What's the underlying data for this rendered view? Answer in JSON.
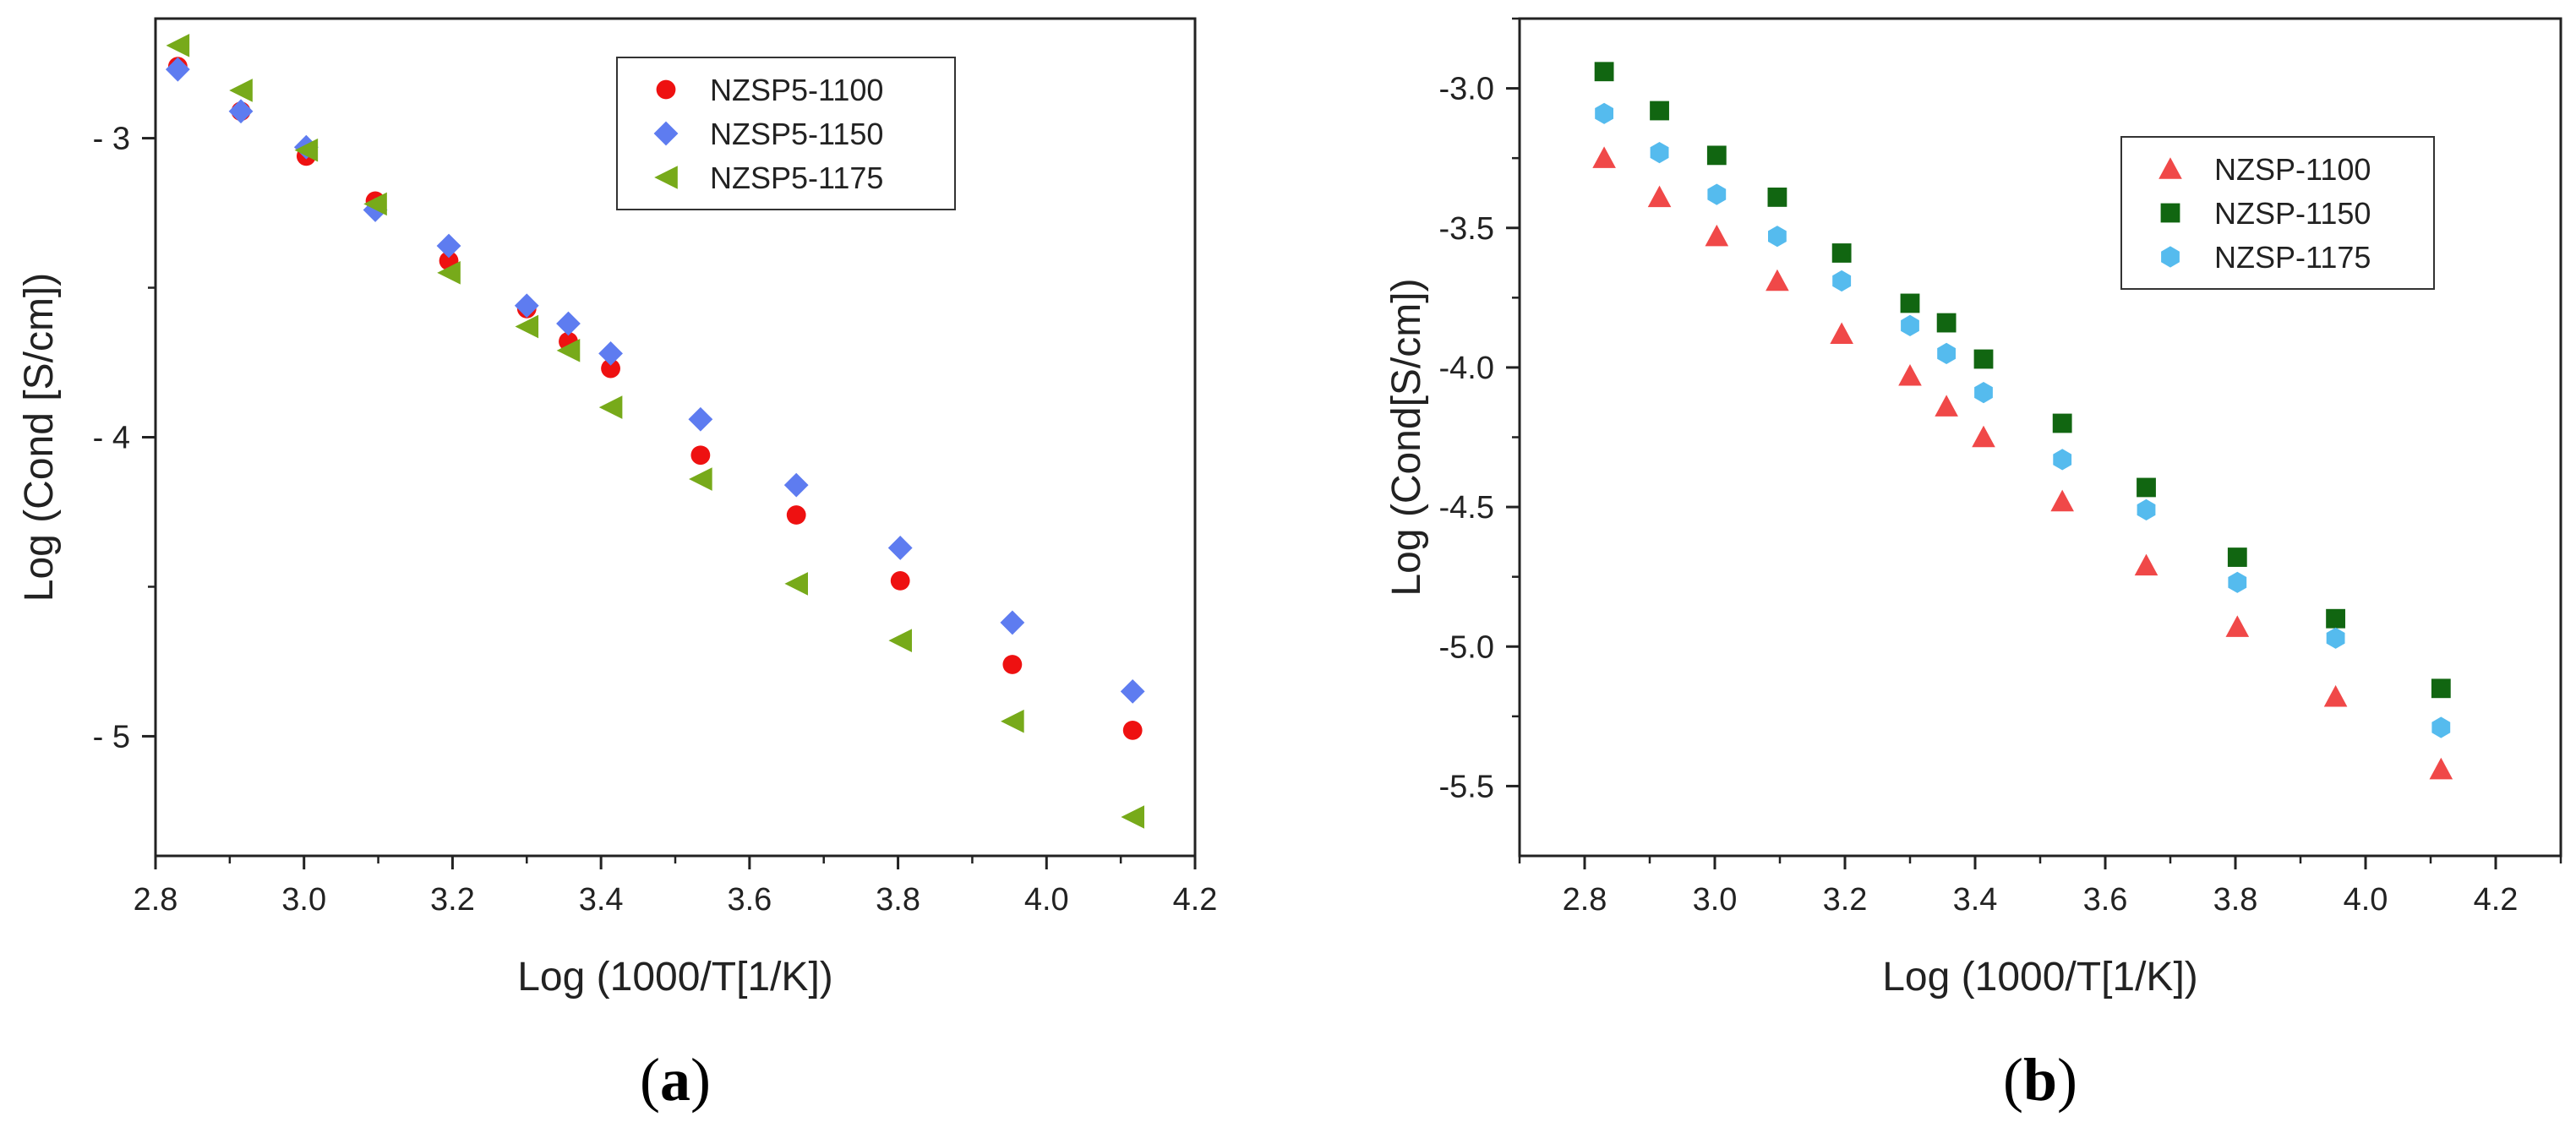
{
  "chart_data": [
    {
      "type": "scatter",
      "panel_label": "a",
      "xlabel": "Log (1000/T[1/K])",
      "ylabel": "Log (Cond [S/cm])",
      "xlim": [
        2.8,
        4.2
      ],
      "ylim": [
        -5.4,
        -2.6
      ],
      "xticks": [
        "2.8",
        "3.0",
        "3.2",
        "3.4",
        "3.6",
        "3.8",
        "4.0",
        "4.2"
      ],
      "yticks": [
        "- 3",
        "- 4",
        "- 5"
      ],
      "ytick_values": [
        -3,
        -4,
        -5
      ],
      "legend_position": "top-right",
      "grid": false,
      "x": [
        2.83,
        2.915,
        3.003,
        3.096,
        3.195,
        3.3,
        3.356,
        3.413,
        3.534,
        3.663,
        3.803,
        3.954,
        4.116
      ],
      "series": [
        {
          "name": "NZSP5-1100",
          "marker": "circle",
          "color": "#ee1111",
          "values": [
            -2.76,
            -2.91,
            -3.06,
            -3.21,
            -3.41,
            -3.57,
            -3.68,
            -3.77,
            -4.06,
            -4.26,
            -4.48,
            -4.76,
            -4.98
          ]
        },
        {
          "name": "NZSP5-1150",
          "marker": "diamond",
          "color": "#5e7cf0",
          "values": [
            -2.77,
            -2.91,
            -3.03,
            -3.24,
            -3.36,
            -3.56,
            -3.62,
            -3.72,
            -3.94,
            -4.16,
            -4.37,
            -4.62,
            -4.85
          ]
        },
        {
          "name": "NZSP5-1175",
          "marker": "triangle-left",
          "color": "#77aa1a",
          "values": [
            -2.69,
            -2.84,
            -3.04,
            -3.22,
            -3.45,
            -3.63,
            -3.71,
            -3.9,
            -4.14,
            -4.49,
            -4.68,
            -4.95,
            -5.27
          ]
        }
      ]
    },
    {
      "type": "scatter",
      "panel_label": "b",
      "xlabel": "Log (1000/T[1/K])",
      "ylabel": "Log (Cond[S/cm])",
      "xlim": [
        2.7,
        4.3
      ],
      "ylim": [
        -5.75,
        -2.75
      ],
      "xticks": [
        "2.8",
        "3.0",
        "3.2",
        "3.4",
        "3.6",
        "3.8",
        "4.0",
        "4.2"
      ],
      "yticks": [
        "-3.0",
        "-3.5",
        "-4.0",
        "-4.5",
        "-5.0",
        "-5.5"
      ],
      "ytick_values": [
        -3.0,
        -3.5,
        -4.0,
        -4.5,
        -5.0,
        -5.5
      ],
      "legend_position": "top-right",
      "grid": false,
      "x": [
        2.83,
        2.915,
        3.003,
        3.096,
        3.195,
        3.3,
        3.356,
        3.413,
        3.534,
        3.663,
        3.803,
        3.954,
        4.116
      ],
      "series": [
        {
          "name": "NZSP-1100",
          "marker": "triangle-up",
          "color": "#f04848",
          "values": [
            -3.25,
            -3.39,
            -3.53,
            -3.69,
            -3.88,
            -4.03,
            -4.14,
            -4.25,
            -4.48,
            -4.71,
            -4.93,
            -5.18,
            -5.44
          ]
        },
        {
          "name": "NZSP-1150",
          "marker": "square",
          "color": "#116611",
          "values": [
            -2.94,
            -3.08,
            -3.24,
            -3.39,
            -3.59,
            -3.77,
            -3.84,
            -3.97,
            -4.2,
            -4.43,
            -4.68,
            -4.9,
            -5.15
          ]
        },
        {
          "name": "NZSP-1175",
          "marker": "hexagon",
          "color": "#55bbee",
          "values": [
            -3.09,
            -3.23,
            -3.38,
            -3.53,
            -3.69,
            -3.85,
            -3.95,
            -4.09,
            -4.33,
            -4.51,
            -4.77,
            -4.97,
            -5.29
          ]
        }
      ]
    }
  ]
}
